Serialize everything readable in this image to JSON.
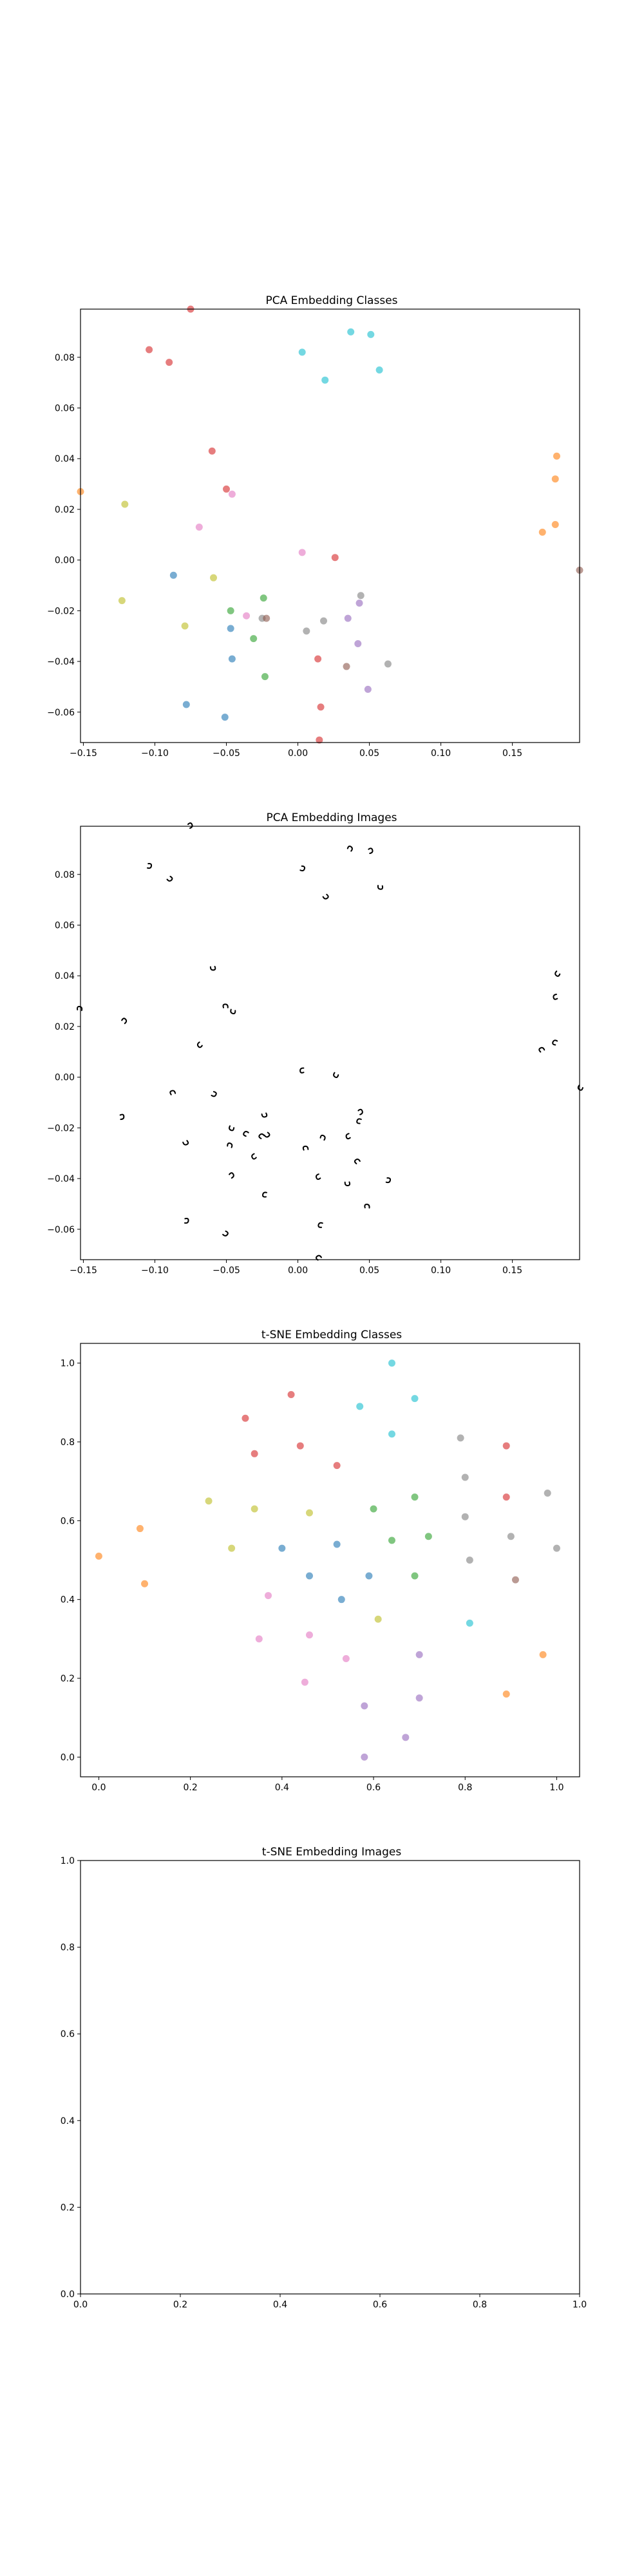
{
  "figure": {
    "panels": [
      {
        "title": "PCA Embedding Classes"
      },
      {
        "title": "PCA Embedding Images"
      },
      {
        "title": "t-SNE Embedding Classes"
      },
      {
        "title": "t-SNE Embedding Images"
      }
    ]
  },
  "chart_data": [
    {
      "type": "scatter",
      "title": "PCA Embedding Classes",
      "xlabel": "",
      "ylabel": "",
      "xlim": [
        -0.152,
        0.197
      ],
      "ylim": [
        -0.072,
        0.099
      ],
      "xticks": [
        -0.15,
        -0.1,
        -0.05,
        0.0,
        0.05,
        0.1,
        0.15
      ],
      "xtick_labels": [
        "−0.15",
        "−0.10",
        "−0.05",
        "0.00",
        "0.05",
        "0.10",
        "0.15"
      ],
      "yticks": [
        -0.06,
        -0.04,
        -0.02,
        0.0,
        0.02,
        0.04,
        0.06,
        0.08
      ],
      "ytick_labels": [
        "−0.06",
        "−0.04",
        "−0.02",
        "0.00",
        "0.02",
        "0.04",
        "0.06",
        "0.08"
      ],
      "grid": false,
      "points": [
        {
          "x": -0.075,
          "y": 0.099,
          "color": "#d62728"
        },
        {
          "x": -0.104,
          "y": 0.083,
          "color": "#d62728"
        },
        {
          "x": -0.09,
          "y": 0.078,
          "color": "#d62728"
        },
        {
          "x": -0.06,
          "y": 0.043,
          "color": "#d62728"
        },
        {
          "x": 0.026,
          "y": 0.001,
          "color": "#d62728"
        },
        {
          "x": 0.014,
          "y": -0.039,
          "color": "#d62728"
        },
        {
          "x": 0.016,
          "y": -0.058,
          "color": "#d62728"
        },
        {
          "x": 0.015,
          "y": -0.071,
          "color": "#d62728"
        },
        {
          "x": -0.05,
          "y": 0.028,
          "color": "#d62728"
        },
        {
          "x": 0.037,
          "y": 0.09,
          "color": "#17becf"
        },
        {
          "x": 0.051,
          "y": 0.089,
          "color": "#17becf"
        },
        {
          "x": 0.003,
          "y": 0.082,
          "color": "#17becf"
        },
        {
          "x": 0.019,
          "y": 0.071,
          "color": "#17becf"
        },
        {
          "x": 0.057,
          "y": 0.075,
          "color": "#17becf"
        },
        {
          "x": 0.181,
          "y": 0.041,
          "color": "#ff7f0e"
        },
        {
          "x": 0.18,
          "y": 0.032,
          "color": "#ff7f0e"
        },
        {
          "x": 0.18,
          "y": 0.014,
          "color": "#ff7f0e"
        },
        {
          "x": 0.171,
          "y": 0.011,
          "color": "#ff7f0e"
        },
        {
          "x": -0.152,
          "y": 0.027,
          "color": "#ff7f0e"
        },
        {
          "x": -0.121,
          "y": 0.022,
          "color": "#bcbd22"
        },
        {
          "x": -0.123,
          "y": -0.016,
          "color": "#bcbd22"
        },
        {
          "x": -0.059,
          "y": -0.007,
          "color": "#bcbd22"
        },
        {
          "x": -0.079,
          "y": -0.026,
          "color": "#bcbd22"
        },
        {
          "x": -0.046,
          "y": 0.026,
          "color": "#e377c2"
        },
        {
          "x": -0.069,
          "y": 0.013,
          "color": "#e377c2"
        },
        {
          "x": 0.003,
          "y": 0.003,
          "color": "#e377c2"
        },
        {
          "x": -0.036,
          "y": -0.022,
          "color": "#e377c2"
        },
        {
          "x": -0.087,
          "y": -0.006,
          "color": "#1f77b4"
        },
        {
          "x": -0.047,
          "y": -0.027,
          "color": "#1f77b4"
        },
        {
          "x": -0.046,
          "y": -0.039,
          "color": "#1f77b4"
        },
        {
          "x": -0.078,
          "y": -0.057,
          "color": "#1f77b4"
        },
        {
          "x": -0.051,
          "y": -0.062,
          "color": "#1f77b4"
        },
        {
          "x": -0.024,
          "y": -0.015,
          "color": "#2ca02c"
        },
        {
          "x": -0.047,
          "y": -0.02,
          "color": "#2ca02c"
        },
        {
          "x": -0.031,
          "y": -0.031,
          "color": "#2ca02c"
        },
        {
          "x": -0.023,
          "y": -0.046,
          "color": "#2ca02c"
        },
        {
          "x": -0.025,
          "y": -0.023,
          "color": "#7f7f7f"
        },
        {
          "x": 0.006,
          "y": -0.028,
          "color": "#7f7f7f"
        },
        {
          "x": 0.018,
          "y": -0.024,
          "color": "#7f7f7f"
        },
        {
          "x": 0.044,
          "y": -0.014,
          "color": "#7f7f7f"
        },
        {
          "x": 0.063,
          "y": -0.041,
          "color": "#7f7f7f"
        },
        {
          "x": -0.022,
          "y": -0.023,
          "color": "#8c564b"
        },
        {
          "x": 0.034,
          "y": -0.042,
          "color": "#8c564b"
        },
        {
          "x": 0.197,
          "y": -0.004,
          "color": "#8c564b"
        },
        {
          "x": 0.035,
          "y": -0.023,
          "color": "#9467bd"
        },
        {
          "x": 0.043,
          "y": -0.017,
          "color": "#9467bd"
        },
        {
          "x": 0.042,
          "y": -0.033,
          "color": "#9467bd"
        },
        {
          "x": 0.049,
          "y": -0.051,
          "color": "#9467bd"
        }
      ]
    },
    {
      "type": "scatter",
      "title": "PCA Embedding Images",
      "xlabel": "",
      "ylabel": "",
      "xlim": [
        -0.152,
        0.197
      ],
      "ylim": [
        -0.072,
        0.099
      ],
      "xticks": [
        -0.15,
        -0.1,
        -0.05,
        0.0,
        0.05,
        0.1,
        0.15
      ],
      "xtick_labels": [
        "−0.15",
        "−0.10",
        "−0.05",
        "0.00",
        "0.05",
        "0.10",
        "0.15"
      ],
      "yticks": [
        -0.06,
        -0.04,
        -0.02,
        0.0,
        0.02,
        0.04,
        0.06,
        0.08
      ],
      "ytick_labels": [
        "−0.06",
        "−0.04",
        "−0.02",
        "0.00",
        "0.02",
        "0.04",
        "0.06",
        "0.08"
      ],
      "grid": false,
      "marker": "small handwritten digit thumbnails (same positions as PCA Embedding Classes)"
    },
    {
      "type": "scatter",
      "title": "t-SNE Embedding Classes",
      "xlabel": "",
      "ylabel": "",
      "xlim": [
        -0.04,
        1.05
      ],
      "ylim": [
        -0.05,
        1.05
      ],
      "xticks": [
        0.0,
        0.2,
        0.4,
        0.6,
        0.8,
        1.0
      ],
      "xtick_labels": [
        "0.0",
        "0.2",
        "0.4",
        "0.6",
        "0.8",
        "1.0"
      ],
      "yticks": [
        0.0,
        0.2,
        0.4,
        0.6,
        0.8,
        1.0
      ],
      "ytick_labels": [
        "0.0",
        "0.2",
        "0.4",
        "0.6",
        "0.8",
        "1.0"
      ],
      "grid": false,
      "points": [
        {
          "x": 0.64,
          "y": 1.0,
          "color": "#17becf"
        },
        {
          "x": 0.57,
          "y": 0.89,
          "color": "#17becf"
        },
        {
          "x": 0.69,
          "y": 0.91,
          "color": "#17becf"
        },
        {
          "x": 0.64,
          "y": 0.82,
          "color": "#17becf"
        },
        {
          "x": 0.81,
          "y": 0.34,
          "color": "#17becf"
        },
        {
          "x": 0.32,
          "y": 0.86,
          "color": "#d62728"
        },
        {
          "x": 0.42,
          "y": 0.92,
          "color": "#d62728"
        },
        {
          "x": 0.34,
          "y": 0.77,
          "color": "#d62728"
        },
        {
          "x": 0.44,
          "y": 0.79,
          "color": "#d62728"
        },
        {
          "x": 0.52,
          "y": 0.74,
          "color": "#d62728"
        },
        {
          "x": 0.89,
          "y": 0.79,
          "color": "#d62728"
        },
        {
          "x": 0.89,
          "y": 0.66,
          "color": "#d62728"
        },
        {
          "x": 0.79,
          "y": 0.81,
          "color": "#7f7f7f"
        },
        {
          "x": 0.8,
          "y": 0.71,
          "color": "#7f7f7f"
        },
        {
          "x": 0.8,
          "y": 0.61,
          "color": "#7f7f7f"
        },
        {
          "x": 0.98,
          "y": 0.67,
          "color": "#7f7f7f"
        },
        {
          "x": 0.9,
          "y": 0.56,
          "color": "#7f7f7f"
        },
        {
          "x": 1.0,
          "y": 0.53,
          "color": "#7f7f7f"
        },
        {
          "x": 0.81,
          "y": 0.5,
          "color": "#7f7f7f"
        },
        {
          "x": 0.91,
          "y": 0.45,
          "color": "#8c564b"
        },
        {
          "x": 0.6,
          "y": 0.63,
          "color": "#2ca02c"
        },
        {
          "x": 0.69,
          "y": 0.66,
          "color": "#2ca02c"
        },
        {
          "x": 0.64,
          "y": 0.55,
          "color": "#2ca02c"
        },
        {
          "x": 0.72,
          "y": 0.56,
          "color": "#2ca02c"
        },
        {
          "x": 0.69,
          "y": 0.46,
          "color": "#2ca02c"
        },
        {
          "x": 0.24,
          "y": 0.65,
          "color": "#bcbd22"
        },
        {
          "x": 0.34,
          "y": 0.63,
          "color": "#bcbd22"
        },
        {
          "x": 0.46,
          "y": 0.62,
          "color": "#bcbd22"
        },
        {
          "x": 0.29,
          "y": 0.53,
          "color": "#bcbd22"
        },
        {
          "x": 0.61,
          "y": 0.35,
          "color": "#bcbd22"
        },
        {
          "x": 0.0,
          "y": 0.51,
          "color": "#ff7f0e"
        },
        {
          "x": 0.09,
          "y": 0.58,
          "color": "#ff7f0e"
        },
        {
          "x": 0.1,
          "y": 0.44,
          "color": "#ff7f0e"
        },
        {
          "x": 0.97,
          "y": 0.26,
          "color": "#ff7f0e"
        },
        {
          "x": 0.89,
          "y": 0.16,
          "color": "#ff7f0e"
        },
        {
          "x": 0.4,
          "y": 0.53,
          "color": "#1f77b4"
        },
        {
          "x": 0.52,
          "y": 0.54,
          "color": "#1f77b4"
        },
        {
          "x": 0.46,
          "y": 0.46,
          "color": "#1f77b4"
        },
        {
          "x": 0.59,
          "y": 0.46,
          "color": "#1f77b4"
        },
        {
          "x": 0.53,
          "y": 0.4,
          "color": "#1f77b4"
        },
        {
          "x": 0.37,
          "y": 0.41,
          "color": "#e377c2"
        },
        {
          "x": 0.35,
          "y": 0.3,
          "color": "#e377c2"
        },
        {
          "x": 0.46,
          "y": 0.31,
          "color": "#e377c2"
        },
        {
          "x": 0.54,
          "y": 0.25,
          "color": "#e377c2"
        },
        {
          "x": 0.45,
          "y": 0.19,
          "color": "#e377c2"
        },
        {
          "x": 0.7,
          "y": 0.26,
          "color": "#9467bd"
        },
        {
          "x": 0.58,
          "y": 0.13,
          "color": "#9467bd"
        },
        {
          "x": 0.7,
          "y": 0.15,
          "color": "#9467bd"
        },
        {
          "x": 0.67,
          "y": 0.05,
          "color": "#9467bd"
        },
        {
          "x": 0.58,
          "y": 0.0,
          "color": "#9467bd"
        }
      ]
    },
    {
      "type": "scatter",
      "title": "t-SNE Embedding Images",
      "xlabel": "",
      "ylabel": "",
      "xlim": [
        0.0,
        1.0
      ],
      "ylim": [
        0.0,
        1.0
      ],
      "xticks": [
        0.0,
        0.2,
        0.4,
        0.6,
        0.8,
        1.0
      ],
      "xtick_labels": [
        "0.0",
        "0.2",
        "0.4",
        "0.6",
        "0.8",
        "1.0"
      ],
      "yticks": [
        0.0,
        0.2,
        0.4,
        0.6,
        0.8,
        1.0
      ],
      "ytick_labels": [
        "0.0",
        "0.2",
        "0.4",
        "0.6",
        "0.8",
        "1.0"
      ],
      "grid": false,
      "points": []
    }
  ]
}
